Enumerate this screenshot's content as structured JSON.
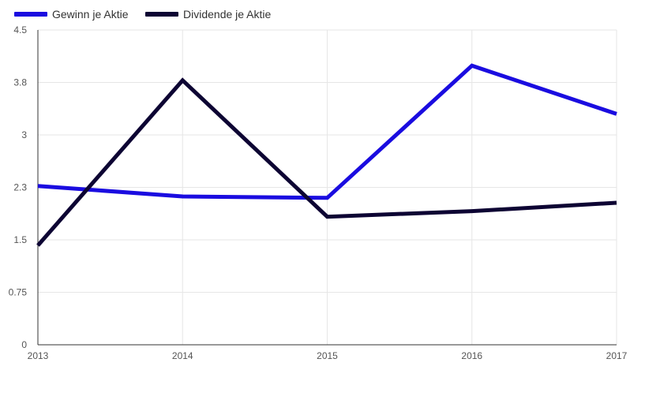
{
  "chart_data": {
    "type": "line",
    "title": "",
    "xlabel": "",
    "ylabel": "",
    "x": [
      "2013",
      "2014",
      "2015",
      "2016",
      "2017"
    ],
    "y_ticks": [
      "0",
      "0.75",
      "1.5",
      "2.3",
      "3",
      "3.8",
      "4.5"
    ],
    "y_tick_values": [
      0,
      0.75,
      1.5,
      2.25,
      3.0,
      3.75,
      4.5
    ],
    "ylim": [
      0,
      4.5
    ],
    "grid": true,
    "legend_position": "top-left",
    "series": [
      {
        "name": "Gewinn je Aktie",
        "color": "#1a0ce0",
        "values": [
          2.27,
          2.12,
          2.1,
          3.99,
          3.3
        ]
      },
      {
        "name": "Dividende je Aktie",
        "color": "#0d0433",
        "values": [
          1.42,
          3.78,
          1.83,
          1.91,
          2.03
        ]
      }
    ]
  }
}
